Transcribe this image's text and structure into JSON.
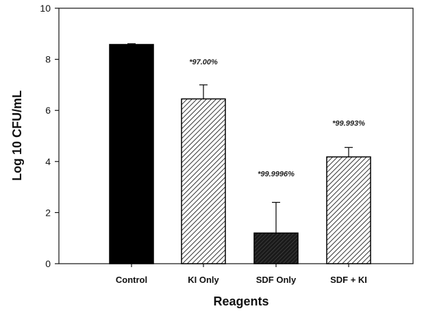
{
  "chart_data": {
    "type": "bar",
    "title": "",
    "xlabel": "Reagents",
    "ylabel": "Log 10 CFU/mL",
    "ylim": [
      0,
      10
    ],
    "yticks": [
      0,
      2,
      4,
      6,
      8,
      10
    ],
    "grid": false,
    "categories": [
      "Control",
      "KI Only",
      "SDF Only",
      "SDF + KI"
    ],
    "values": [
      8.58,
      6.45,
      1.2,
      4.18
    ],
    "error_upper": [
      0.03,
      0.55,
      1.2,
      0.37
    ],
    "data_labels": [
      "",
      "*97.00%",
      "*99.9996%",
      "*99.993%"
    ],
    "bar_styles": [
      {
        "fill": "#000000",
        "pattern": "solid"
      },
      {
        "fill": "#ffffff",
        "pattern": "diagonal-hatch-light"
      },
      {
        "fill": "#2b2b2b",
        "pattern": "diagonal-hatch-dark"
      },
      {
        "fill": "#ffffff",
        "pattern": "diagonal-hatch-light"
      }
    ]
  }
}
